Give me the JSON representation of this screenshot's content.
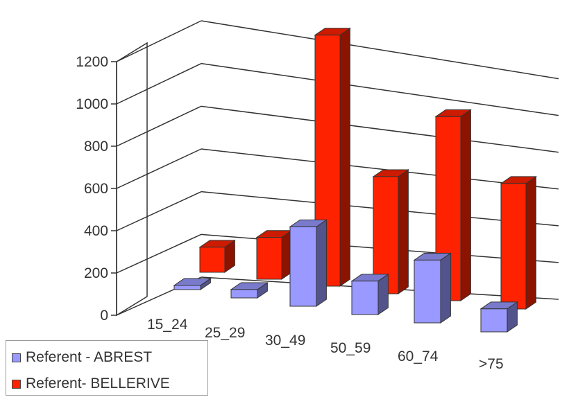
{
  "chart_data": {
    "type": "bar",
    "categories": [
      "15_24",
      "25_29",
      "30_49",
      "50_59",
      "60_74",
      ">75"
    ],
    "y_ticks": [
      "0",
      "200",
      "400",
      "600",
      "800",
      "1000",
      "1200"
    ],
    "ylim": [
      0,
      1200
    ],
    "grid": true,
    "legend_position": "bottom-left",
    "series": [
      {
        "name": "Referent - ABREST",
        "color": "#9999ff",
        "values": [
          20,
          40,
          380,
          160,
          300,
          110
        ]
      },
      {
        "name": "Referent- BELLERIVE",
        "color": "#ff2200",
        "values": [
          120,
          200,
          1200,
          560,
          880,
          600
        ]
      }
    ]
  }
}
